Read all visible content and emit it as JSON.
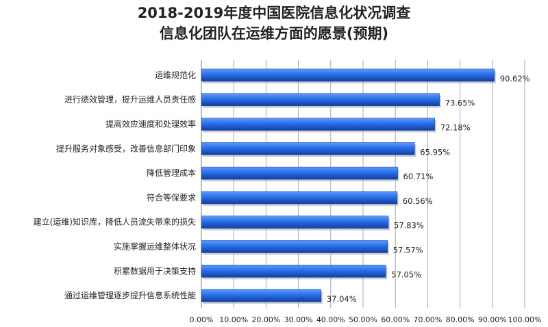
{
  "chart_data": {
    "type": "bar",
    "orientation": "horizontal",
    "title": [
      "2018-2019年度中国医院信息化状况调查",
      "信息化团队在运维方面的愿景(预期)"
    ],
    "categories": [
      "运维规范化",
      "进行绩效管理，提升运维人员责任感",
      "提高效应速度和处理效率",
      "提升服务对象感受，改善信息部门印象",
      "降低管理成本",
      "符合等保要求",
      "建立(运维)知识库，降低人员流失带来的损失",
      "实施掌握运维整体状况",
      "积累数据用于决策支持",
      "通过运维管理逐步提升信息系统性能"
    ],
    "values": [
      90.62,
      73.65,
      72.18,
      65.95,
      60.71,
      60.56,
      57.83,
      57.57,
      57.05,
      37.04
    ],
    "value_labels": [
      "90.62%",
      "73.65%",
      "72.18%",
      "65.95%",
      "60.71%",
      "60.56%",
      "57.83%",
      "57.57%",
      "57.05%",
      "37.04%"
    ],
    "xlim": [
      0,
      100
    ],
    "xticks": [
      "0.00%",
      "10.00%",
      "20.00%",
      "30.00%",
      "40.00%",
      "50.00%",
      "60.00%",
      "70.00%",
      "80.00%",
      "90.00%",
      "100.00%"
    ],
    "grid": "vertical",
    "legend": "none",
    "bar_color": "#1f5fd6"
  }
}
